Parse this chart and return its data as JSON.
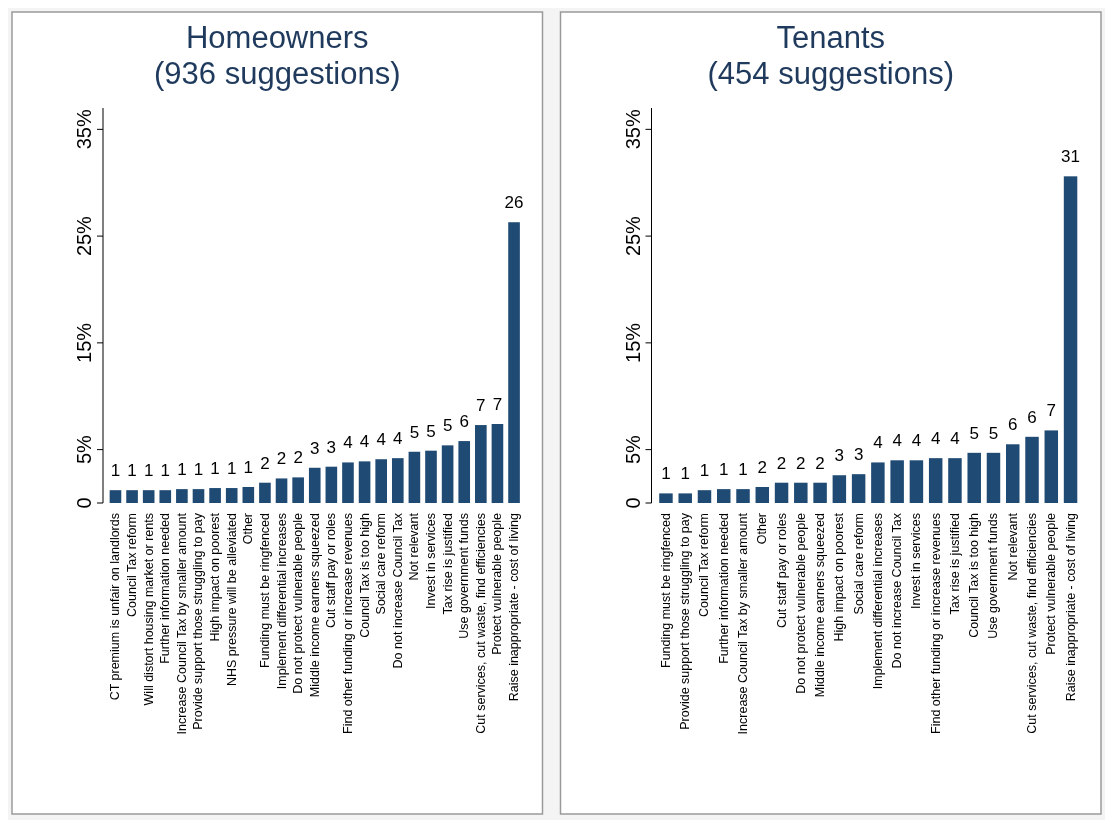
{
  "chart_data": [
    {
      "type": "bar",
      "title": "Homeowners\n(936 suggestions)",
      "categories": [
        "CT premium is unfair on landlords",
        "Council Tax reform",
        "Will distort housing market or rents",
        "Further information needed",
        "Increase Council Tax by smaller amount",
        "Provide support those struggling to pay",
        "High impact on poorest",
        "NHS pressure will be alleviated",
        "Other",
        "Funding must be ringfenced",
        "Implement differential increases",
        "Do not protect vulnerable people",
        "Middle income earners squeezed",
        "Cut staff pay or roles",
        "Find other funding or increase revenues",
        "Council Tax is too high",
        "Social care reform",
        "Do not increase Council Tax",
        "Not relevant",
        "Invest in services",
        "Tax rise is justified",
        "Use government funds",
        "Cut services, cut waste, find efficiencies",
        "Protect vulnerable people",
        "Raise inappropriate - cost of living"
      ],
      "values": [
        1.2,
        1.2,
        1.2,
        1.2,
        1.3,
        1.3,
        1.4,
        1.4,
        1.5,
        1.9,
        2.3,
        2.4,
        3.3,
        3.4,
        3.8,
        3.9,
        4.1,
        4.2,
        4.8,
        4.9,
        5.4,
        5.8,
        7.3,
        7.4,
        26.3
      ],
      "value_labels": [
        "1",
        "1",
        "1",
        "1",
        "1",
        "1",
        "1",
        "1",
        "1",
        "2",
        "2",
        "2",
        "3",
        "3",
        "4",
        "4",
        "4",
        "4",
        "5",
        "5",
        "5",
        "6",
        "7",
        "7",
        "26"
      ],
      "color": "#1f4a73",
      "ylim": [
        0,
        37
      ],
      "yticks": [
        0,
        {
          "value": 5,
          "label": "5%"
        },
        {
          "value": 15,
          "label": "15%"
        },
        {
          "value": 25,
          "label": "25%"
        },
        {
          "value": 35,
          "label": "35%"
        }
      ]
    },
    {
      "type": "bar",
      "title": "Tenants\n(454 suggestions)",
      "categories": [
        "Funding must be ringfenced",
        "Provide support those struggling to pay",
        "Council Tax reform",
        "Further information needed",
        "Increase Council Tax by smaller amount",
        "Other",
        "Cut staff pay or roles",
        "Do not protect vulnerable people",
        "Middle income earners squeezed",
        "High impact on poorest",
        "Social care reform",
        "Implement differential increases",
        "Do not increase Council Tax",
        "Invest in services",
        "Find other funding or increase revenues",
        "Tax rise is justified",
        "Council Tax is too high",
        "Use government funds",
        "Not relevant",
        "Cut services, cut waste, find efficiencies",
        "Protect vulnerable people",
        "Raise inappropriate - cost of living"
      ],
      "values": [
        0.9,
        0.9,
        1.2,
        1.3,
        1.3,
        1.5,
        1.9,
        1.9,
        1.9,
        2.6,
        2.7,
        3.8,
        4.0,
        4.0,
        4.2,
        4.2,
        4.7,
        4.7,
        5.5,
        6.2,
        6.8,
        30.6
      ],
      "value_labels": [
        "1",
        "1",
        "1",
        "1",
        "1",
        "2",
        "2",
        "2",
        "2",
        "3",
        "3",
        "4",
        "4",
        "4",
        "4",
        "4",
        "5",
        "5",
        "6",
        "6",
        "7",
        "31"
      ],
      "color": "#1f4a73",
      "ylim": [
        0,
        37
      ],
      "yticks": [
        0,
        {
          "value": 5,
          "label": "5%"
        },
        {
          "value": 15,
          "label": "15%"
        },
        {
          "value": 25,
          "label": "25%"
        },
        {
          "value": 35,
          "label": "35%"
        }
      ]
    }
  ]
}
